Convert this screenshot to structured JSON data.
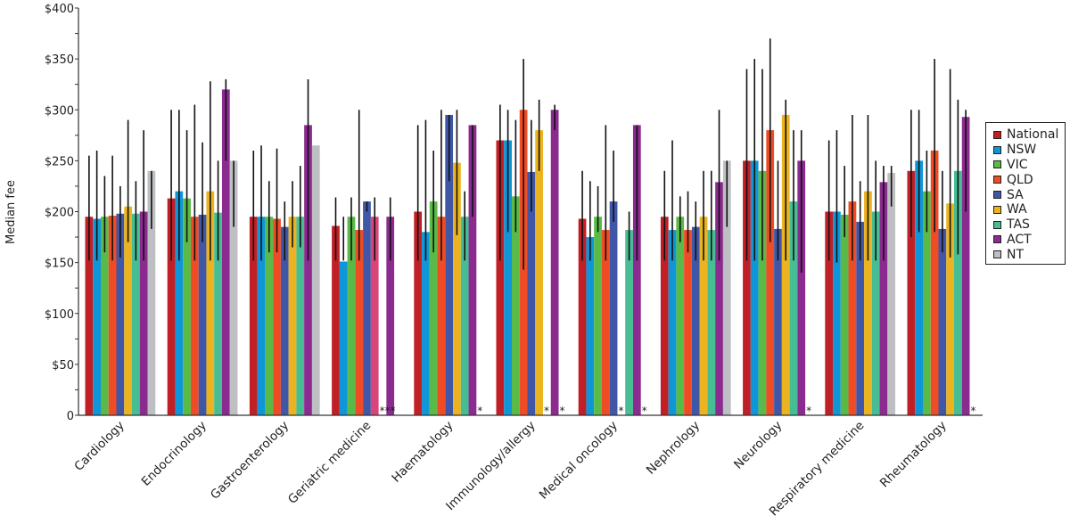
{
  "chart_data": {
    "type": "bar",
    "title": "",
    "xlabel": "",
    "ylabel": "Median fee",
    "ylim": [
      0,
      400
    ],
    "yticks": [
      {
        "value": 0,
        "label": "0"
      },
      {
        "value": 50,
        "label": "$50"
      },
      {
        "value": 100,
        "label": "$100"
      },
      {
        "value": 150,
        "label": "$150"
      },
      {
        "value": 200,
        "label": "$200"
      },
      {
        "value": 250,
        "label": "$250"
      },
      {
        "value": 300,
        "label": "$300"
      },
      {
        "value": 350,
        "label": "$350"
      },
      {
        "value": 400,
        "label": "$400"
      }
    ],
    "minor_tick_step": 25,
    "grid": false,
    "legend_position": "right",
    "categories": [
      "Cardiology",
      "Endocrinology",
      "Gastroenterology",
      "Geriatric medicine",
      "Haematology",
      "Immunology/allergy",
      "Medical oncology",
      "Nephrology",
      "Neurology",
      "Respiratory medicine",
      "Rheumatology"
    ],
    "series": [
      {
        "name": "National",
        "color": "#c11f26",
        "values": [
          195,
          213,
          195,
          186,
          200,
          270,
          193,
          195,
          250,
          200,
          240
        ],
        "err_low": [
          152,
          152,
          152,
          152,
          152,
          152,
          152,
          152,
          152,
          152,
          175
        ],
        "err_high": [
          255,
          300,
          260,
          214,
          285,
          305,
          240,
          240,
          340,
          270,
          300
        ]
      },
      {
        "name": "NSW",
        "color": "#0e96d8",
        "values": [
          193,
          220,
          195,
          151,
          180,
          270,
          175,
          182,
          250,
          200,
          250
        ],
        "err_low": [
          152,
          152,
          152,
          152,
          152,
          180,
          152,
          152,
          152,
          150,
          180
        ],
        "err_high": [
          260,
          300,
          265,
          195,
          290,
          300,
          230,
          270,
          350,
          280,
          300
        ]
      },
      {
        "name": "VIC",
        "color": "#5aba47",
        "values": [
          195,
          213,
          195,
          195,
          210,
          215,
          195,
          195,
          240,
          197,
          220
        ],
        "err_low": [
          160,
          170,
          160,
          152,
          160,
          180,
          180,
          170,
          152,
          175,
          180
        ],
        "err_high": [
          235,
          280,
          230,
          214,
          260,
          290,
          225,
          215,
          340,
          245,
          260
        ]
      },
      {
        "name": "QLD",
        "color": "#ef4b24",
        "values": [
          196,
          195,
          193,
          182,
          195,
          300,
          182,
          182,
          280,
          210,
          260
        ],
        "err_low": [
          152,
          152,
          160,
          152,
          152,
          143,
          152,
          160,
          170,
          152,
          180
        ],
        "err_high": [
          255,
          305,
          262,
          300,
          300,
          350,
          285,
          220,
          370,
          295,
          350
        ]
      },
      {
        "name": "SA",
        "color": "#3f57a6",
        "values": [
          198,
          197,
          185,
          210,
          295,
          239,
          210,
          185,
          183,
          190,
          183
        ],
        "err_low": [
          155,
          170,
          152,
          200,
          230,
          200,
          190,
          152,
          152,
          152,
          160
        ],
        "err_high": [
          225,
          268,
          210,
          210,
          295,
          290,
          260,
          210,
          250,
          230,
          240
        ]
      },
      {
        "name": "WA",
        "color": "#eab31f",
        "values": [
          205,
          220,
          195,
          null,
          248,
          280,
          null,
          195,
          295,
          220,
          208
        ],
        "err_low": [
          170,
          152,
          165,
          null,
          177,
          240,
          null,
          152,
          152,
          152,
          155
        ],
        "err_high": [
          290,
          328,
          230,
          null,
          300,
          310,
          null,
          240,
          310,
          295,
          340
        ]
      },
      {
        "name": "TAS",
        "color": "#47bd94",
        "values": [
          198,
          199,
          195,
          null,
          195,
          null,
          182,
          182,
          210,
          200,
          240
        ],
        "err_low": [
          152,
          152,
          165,
          null,
          152,
          null,
          152,
          152,
          152,
          152,
          158
        ],
        "err_high": [
          230,
          250,
          245,
          null,
          220,
          null,
          200,
          240,
          280,
          250,
          310
        ]
      },
      {
        "name": "ACT",
        "color": "#8b2a8f",
        "values": [
          200,
          320,
          285,
          195,
          285,
          300,
          285,
          229,
          250,
          229,
          293
        ],
        "err_low": [
          152,
          250,
          152,
          152,
          195,
          280,
          152,
          152,
          140,
          152,
          200
        ],
        "err_high": [
          280,
          330,
          330,
          214,
          285,
          305,
          285,
          300,
          280,
          245,
          300
        ]
      },
      {
        "name": "NT",
        "color": "#bebfc2",
        "values": [
          240,
          250,
          265,
          null,
          null,
          null,
          null,
          250,
          null,
          238,
          null
        ],
        "err_low": [
          183,
          185,
          null,
          null,
          null,
          null,
          null,
          185,
          null,
          205,
          null
        ],
        "err_high": [
          240,
          250,
          null,
          null,
          null,
          null,
          null,
          250,
          null,
          245,
          null
        ]
      }
    ],
    "special_bars": [
      {
        "category": "Geriatric medicine",
        "slot": 5,
        "color": "#d9447a",
        "value": 195,
        "err_low": 152,
        "err_high": 214
      }
    ],
    "annotations": [
      {
        "category": "Geriatric medicine",
        "text": "***",
        "slot": 6
      },
      {
        "category": "Haematology",
        "text": "*",
        "slot": 8
      },
      {
        "category": "Immunology/allergy",
        "text": "*",
        "slot": 6
      },
      {
        "category": "Immunology/allergy",
        "text": "*",
        "slot": 8
      },
      {
        "category": "Medical oncology",
        "text": "*",
        "slot": 5
      },
      {
        "category": "Medical oncology",
        "text": "*",
        "slot": 8
      },
      {
        "category": "Neurology",
        "text": "*",
        "slot": 8
      },
      {
        "category": "Rheumatology",
        "text": "*",
        "slot": 8
      }
    ]
  }
}
